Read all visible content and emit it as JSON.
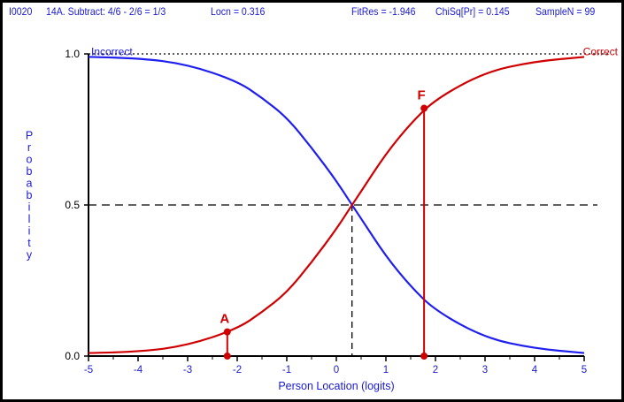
{
  "header": {
    "item": "I0020",
    "item_title": "14A. Subtract: 4/6 - 2/6 = 1/3",
    "locn": "Locn = 0.316",
    "fitres": "FitRes = -1.946",
    "chisq": "ChiSq[Pr] = 0.145",
    "samplen": "SampleN = 99"
  },
  "chart_data": {
    "type": "line",
    "xlabel": "Person Location (logits)",
    "ylabel": "Probability",
    "xlim": [
      -5,
      5
    ],
    "ylim": [
      0,
      1
    ],
    "x_ticks": [
      "-5",
      "-4",
      "-3",
      "-2",
      "-1",
      "0",
      "1",
      "2",
      "3",
      "4",
      "5"
    ],
    "y_ticks": [
      "0.0",
      "0.5",
      "1.0"
    ],
    "item_location": 0.316,
    "reference_probability": 0.5,
    "series": [
      {
        "name": "Incorrect",
        "color": "#1f1ff0",
        "x": [
          -5,
          -4,
          -3,
          -2,
          -1.5,
          -1,
          -0.5,
          0,
          0.316,
          0.5,
          1,
          1.5,
          2,
          3,
          4,
          5
        ],
        "y": [
          0.99,
          0.987,
          0.965,
          0.91,
          0.855,
          0.79,
          0.69,
          0.58,
          0.5,
          0.455,
          0.33,
          0.23,
          0.15,
          0.06,
          0.025,
          0.01
        ]
      },
      {
        "name": "Correct",
        "color": "#d00000",
        "x": [
          -5,
          -4,
          -3,
          -2,
          -1.5,
          -1,
          -0.5,
          0,
          0.316,
          0.5,
          1,
          1.5,
          2,
          3,
          4,
          5
        ],
        "y": [
          0.01,
          0.013,
          0.035,
          0.09,
          0.145,
          0.21,
          0.31,
          0.42,
          0.5,
          0.545,
          0.67,
          0.77,
          0.85,
          0.94,
          0.975,
          0.99
        ]
      }
    ],
    "markers": [
      {
        "label": "A",
        "x": -2.2,
        "y": 0.08,
        "color": "#d00000"
      },
      {
        "label": "F",
        "x": 1.77,
        "y": 0.82,
        "color": "#d00000"
      }
    ]
  }
}
